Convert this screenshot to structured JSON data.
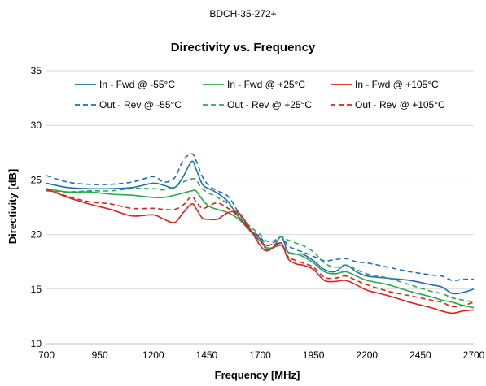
{
  "header": {
    "part_number": "BDCH-35-272+"
  },
  "chart_data": {
    "type": "line",
    "title": "Directivity vs. Frequency",
    "xlabel": "Frequency [MHz]",
    "ylabel": "Directivity [dB]",
    "xlim": [
      700,
      2700
    ],
    "ylim": [
      10,
      35
    ],
    "xticks": [
      700,
      950,
      1200,
      1450,
      1700,
      1950,
      2200,
      2450,
      2700
    ],
    "yticks": [
      10,
      15,
      20,
      25,
      30,
      35
    ],
    "grid": "horizontal",
    "legend_position": "top",
    "series": [
      {
        "name": "In - Fwd @ -55°C",
        "color": "#1f6fb4",
        "dash": "solid",
        "x": [
          700,
          800,
          900,
          1000,
          1100,
          1200,
          1250,
          1300,
          1340,
          1380,
          1400,
          1430,
          1460,
          1500,
          1550,
          1600,
          1650,
          1700,
          1730,
          1760,
          1800,
          1830,
          1870,
          1900,
          1950,
          2000,
          2050,
          2100,
          2150,
          2200,
          2300,
          2400,
          2500,
          2550,
          2600,
          2650,
          2700
        ],
        "y": [
          24.7,
          24.3,
          24.2,
          24.2,
          24.3,
          24.7,
          24.5,
          24.3,
          25.3,
          26.7,
          26.0,
          24.6,
          24.2,
          23.8,
          23.0,
          21.6,
          20.5,
          19.6,
          18.6,
          18.8,
          19.8,
          18.4,
          18.2,
          18.2,
          17.6,
          16.8,
          16.6,
          17.2,
          16.6,
          16.2,
          16.0,
          15.8,
          15.4,
          15.2,
          14.6,
          14.7,
          15.0
        ]
      },
      {
        "name": "Out - Rev @ -55°C",
        "color": "#1f6fb4",
        "dash": "dashed",
        "x": [
          700,
          800,
          900,
          1000,
          1100,
          1200,
          1250,
          1300,
          1340,
          1380,
          1400,
          1430,
          1460,
          1500,
          1550,
          1600,
          1650,
          1700,
          1730,
          1760,
          1800,
          1830,
          1870,
          1900,
          1950,
          2000,
          2050,
          2100,
          2150,
          2200,
          2300,
          2400,
          2500,
          2550,
          2600,
          2650,
          2700
        ],
        "y": [
          25.4,
          24.8,
          24.6,
          24.6,
          24.8,
          25.3,
          24.8,
          25.2,
          26.8,
          27.4,
          26.8,
          25.3,
          24.5,
          24.0,
          23.5,
          22.0,
          20.5,
          19.8,
          19.0,
          19.2,
          19.8,
          19.0,
          18.6,
          18.4,
          18.0,
          17.6,
          17.7,
          17.8,
          17.5,
          17.4,
          17.0,
          16.6,
          16.3,
          16.2,
          15.8,
          15.9,
          15.9
        ]
      },
      {
        "name": "In - Fwd @ +25°C",
        "color": "#2aaa4a",
        "dash": "solid",
        "x": [
          700,
          800,
          900,
          1000,
          1100,
          1200,
          1250,
          1300,
          1340,
          1380,
          1400,
          1430,
          1460,
          1500,
          1550,
          1600,
          1650,
          1700,
          1730,
          1760,
          1800,
          1830,
          1870,
          1900,
          1950,
          2000,
          2050,
          2100,
          2150,
          2200,
          2300,
          2400,
          2500,
          2550,
          2600,
          2650,
          2700
        ],
        "y": [
          24.2,
          23.9,
          23.9,
          23.7,
          23.6,
          23.4,
          23.4,
          23.6,
          23.8,
          24.0,
          24.0,
          23.2,
          22.6,
          22.3,
          22.0,
          21.4,
          20.4,
          19.4,
          18.8,
          18.8,
          19.0,
          18.4,
          18.2,
          18.0,
          17.4,
          16.6,
          16.4,
          16.6,
          16.2,
          15.8,
          15.4,
          14.8,
          14.3,
          14.0,
          13.8,
          13.5,
          13.3
        ]
      },
      {
        "name": "Out - Rev @ +25°C",
        "color": "#2aaa4a",
        "dash": "dashed",
        "x": [
          700,
          800,
          900,
          1000,
          1100,
          1200,
          1250,
          1300,
          1340,
          1380,
          1400,
          1430,
          1460,
          1500,
          1550,
          1600,
          1650,
          1700,
          1730,
          1760,
          1800,
          1830,
          1870,
          1900,
          1950,
          2000,
          2050,
          2100,
          2150,
          2200,
          2300,
          2400,
          2500,
          2550,
          2600,
          2650,
          2700
        ],
        "y": [
          24.0,
          23.9,
          24.0,
          24.0,
          24.2,
          24.2,
          24.1,
          24.4,
          24.8,
          25.1,
          25.0,
          24.2,
          23.8,
          23.4,
          22.8,
          21.8,
          20.8,
          20.0,
          19.4,
          19.4,
          19.8,
          19.5,
          19.2,
          19.0,
          18.4,
          17.4,
          17.0,
          17.2,
          16.8,
          16.4,
          16.0,
          15.4,
          14.8,
          14.6,
          14.2,
          14.0,
          13.8
        ]
      },
      {
        "name": "In - Fwd @ +105°C",
        "color": "#e0201b",
        "dash": "solid",
        "x": [
          700,
          800,
          900,
          1000,
          1100,
          1200,
          1250,
          1300,
          1340,
          1380,
          1400,
          1430,
          1460,
          1500,
          1550,
          1600,
          1650,
          1700,
          1730,
          1760,
          1800,
          1830,
          1870,
          1900,
          1950,
          2000,
          2050,
          2100,
          2150,
          2200,
          2300,
          2400,
          2500,
          2550,
          2600,
          2650,
          2700
        ],
        "y": [
          24.2,
          23.4,
          22.8,
          22.3,
          21.7,
          21.8,
          21.4,
          21.1,
          22.0,
          22.8,
          22.4,
          21.5,
          21.4,
          21.4,
          22.0,
          22.0,
          20.6,
          19.0,
          18.5,
          18.8,
          19.2,
          17.8,
          17.3,
          17.2,
          16.8,
          15.8,
          15.7,
          15.8,
          15.4,
          14.9,
          14.4,
          13.8,
          13.3,
          13.0,
          12.8,
          13.0,
          13.1
        ]
      },
      {
        "name": "Out - Rev @ +105°C",
        "color": "#e0201b",
        "dash": "dashed",
        "x": [
          700,
          800,
          900,
          1000,
          1100,
          1200,
          1250,
          1300,
          1340,
          1380,
          1400,
          1430,
          1460,
          1500,
          1550,
          1600,
          1650,
          1700,
          1730,
          1760,
          1800,
          1830,
          1870,
          1900,
          1950,
          2000,
          2050,
          2100,
          2150,
          2200,
          2300,
          2400,
          2500,
          2550,
          2600,
          2650,
          2700
        ],
        "y": [
          24.1,
          23.5,
          23.0,
          22.8,
          22.4,
          22.4,
          22.3,
          22.3,
          22.7,
          23.5,
          23.0,
          22.4,
          22.6,
          22.9,
          22.4,
          21.6,
          20.4,
          19.4,
          19.0,
          19.1,
          19.1,
          18.0,
          17.6,
          17.4,
          17.0,
          16.1,
          16.0,
          16.2,
          15.8,
          15.4,
          14.8,
          14.4,
          14.0,
          13.8,
          13.4,
          13.5,
          13.8
        ]
      }
    ]
  }
}
